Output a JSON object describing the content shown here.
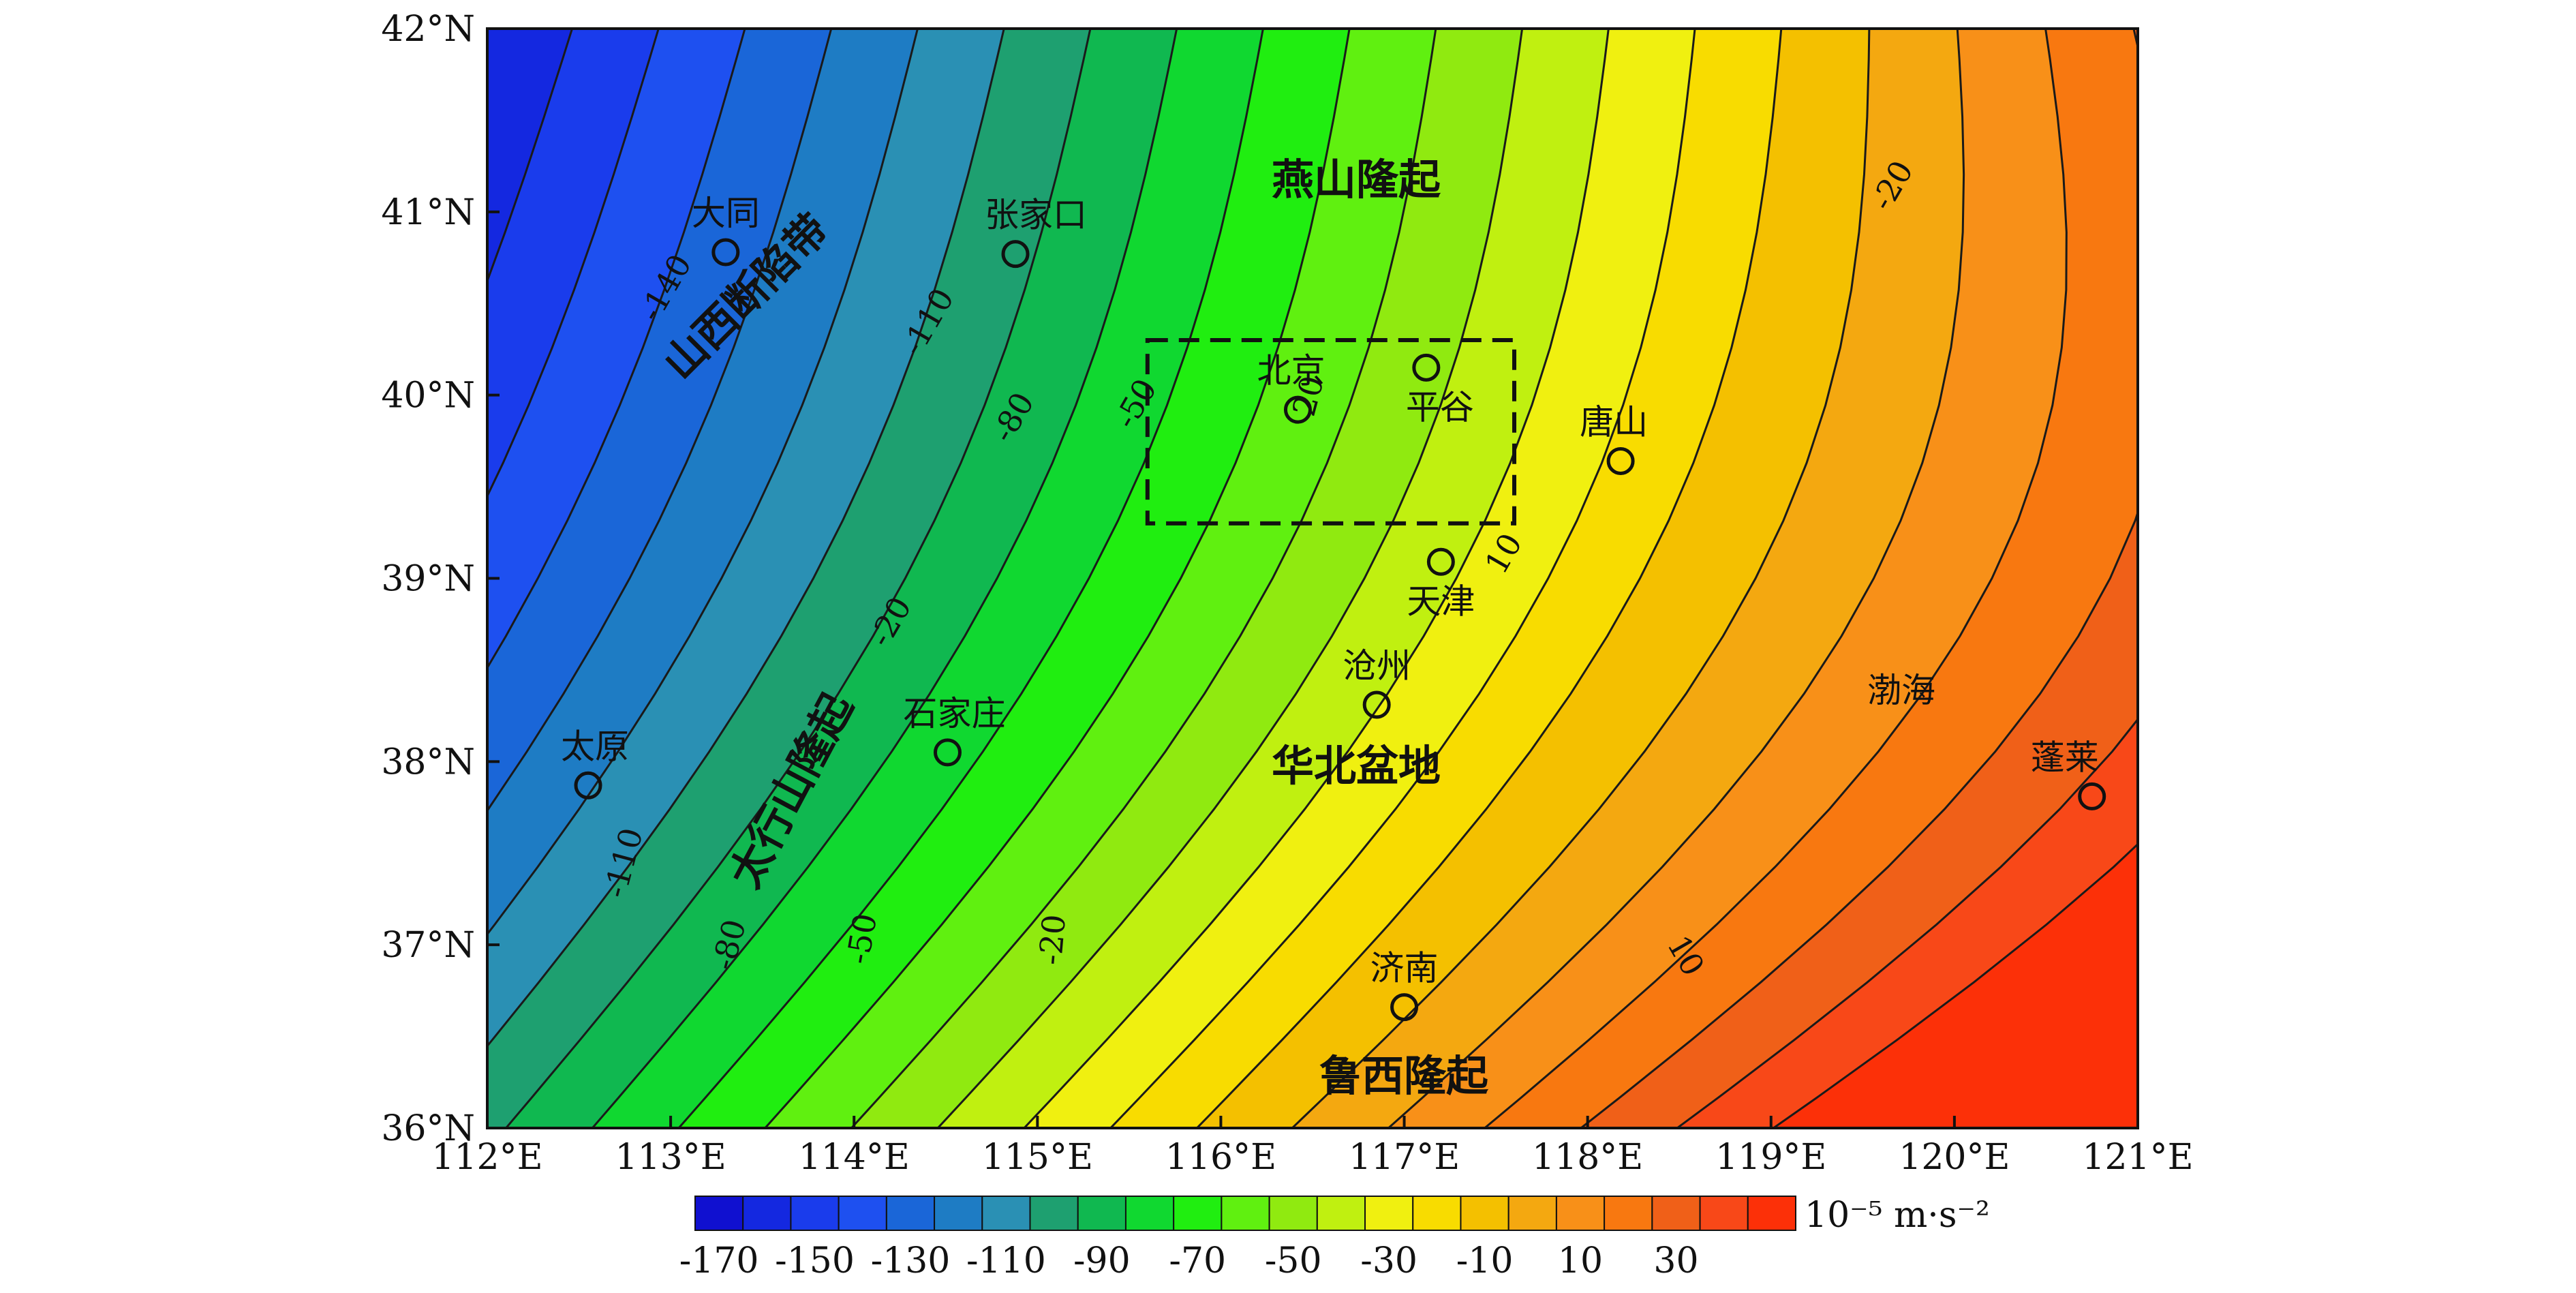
{
  "figure": {
    "extent": {
      "lon_min": 112,
      "lon_max": 121,
      "lat_min": 36,
      "lat_max": 42
    },
    "x_ticks": [
      "112°E",
      "113°E",
      "114°E",
      "115°E",
      "116°E",
      "117°E",
      "118°E",
      "119°E",
      "120°E",
      "121°E"
    ],
    "y_ticks": [
      "36°N",
      "37°N",
      "38°N",
      "39°N",
      "40°N",
      "41°N",
      "42°N"
    ],
    "cities": [
      {
        "name": "大同",
        "lon": 113.3,
        "lat": 40.78
      },
      {
        "name": "张家口",
        "lon": 114.88,
        "lat": 40.77
      },
      {
        "name": "北京",
        "lon": 116.42,
        "lat": 39.92
      },
      {
        "name": "平谷",
        "lon": 117.12,
        "lat": 40.15
      },
      {
        "name": "唐山",
        "lon": 118.18,
        "lat": 39.64
      },
      {
        "name": "天津",
        "lon": 117.2,
        "lat": 39.09
      },
      {
        "name": "沧州",
        "lon": 116.85,
        "lat": 38.31
      },
      {
        "name": "石家庄",
        "lon": 114.51,
        "lat": 38.05
      },
      {
        "name": "太原",
        "lon": 112.55,
        "lat": 37.87
      },
      {
        "name": "济南",
        "lon": 117.0,
        "lat": 36.66
      },
      {
        "name": "蓬莱",
        "lon": 120.75,
        "lat": 37.81
      }
    ],
    "regions": [
      {
        "name": "燕山隆起"
      },
      {
        "name": "山西断陷带"
      },
      {
        "name": "太行山隆起"
      },
      {
        "name": "华北盆地"
      },
      {
        "name": "渤海"
      },
      {
        "name": "鲁西隆起"
      }
    ],
    "contour_labels": [
      "-140",
      "-110",
      "-80",
      "-50",
      "-20",
      "10",
      "-110",
      "-80",
      "-50",
      "-20",
      "20",
      "10",
      "-20"
    ],
    "study_box": {
      "lon_min": 115.6,
      "lon_max": 117.6,
      "lat_min": 39.3,
      "lat_max": 40.3
    },
    "colorbar": {
      "unit": "10⁻⁵ m·s⁻²",
      "tick_labels": [
        "-170",
        "-150",
        "-130",
        "-110",
        "-90",
        "-70",
        "-50",
        "-30",
        "-10",
        "10",
        "30"
      ],
      "colors": [
        "#1010d0",
        "#1428e0",
        "#1a3cec",
        "#1e50f0",
        "#1a66d8",
        "#1e7cc4",
        "#2a90b4",
        "#1ea070",
        "#10b850",
        "#10d830",
        "#20ee10",
        "#60f010",
        "#90ea10",
        "#c0f010",
        "#f0f010",
        "#f8dc00",
        "#f4c000",
        "#f4a810",
        "#f89018",
        "#f87810",
        "#f06018",
        "#f84818",
        "#fc3008"
      ]
    }
  }
}
